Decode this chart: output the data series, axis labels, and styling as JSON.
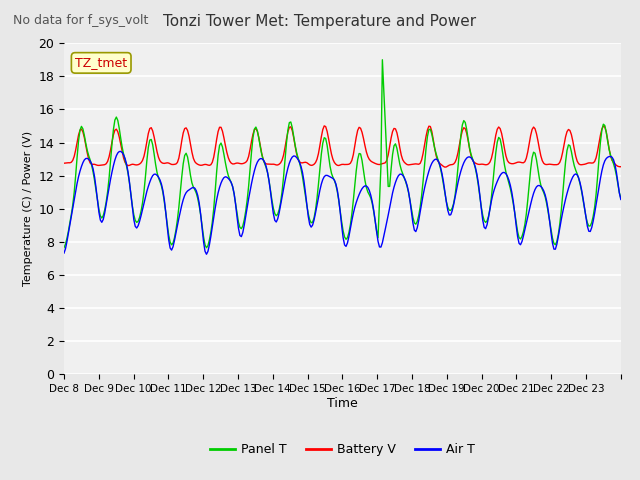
{
  "title": "Tonzi Tower Met: Temperature and Power",
  "subtitle": "No data for f_sys_volt",
  "ylabel": "Temperature (C) / Power (V)",
  "xlabel": "Time",
  "annotation": "TZ_tmet",
  "ylim": [
    0,
    20
  ],
  "yticks": [
    0,
    2,
    4,
    6,
    8,
    10,
    12,
    14,
    16,
    18,
    20
  ],
  "xtick_labels": [
    "Dec 8",
    "Dec 9",
    "Dec 10",
    "Dec 11",
    "Dec 12",
    "Dec 13",
    "Dec 14",
    "Dec 15",
    "Dec 16",
    "Dec 17",
    "Dec 18",
    "Dec 19",
    "Dec 20",
    "Dec 21",
    "Dec 22",
    "Dec 23"
  ],
  "panel_color": "#00cc00",
  "battery_color": "#ff0000",
  "air_color": "#0000ff",
  "bg_color": "#e8e8e8",
  "plot_bg_color": "#f0f0f0",
  "legend_labels": [
    "Panel T",
    "Battery V",
    "Air T"
  ],
  "n_days": 16,
  "seed": 42
}
